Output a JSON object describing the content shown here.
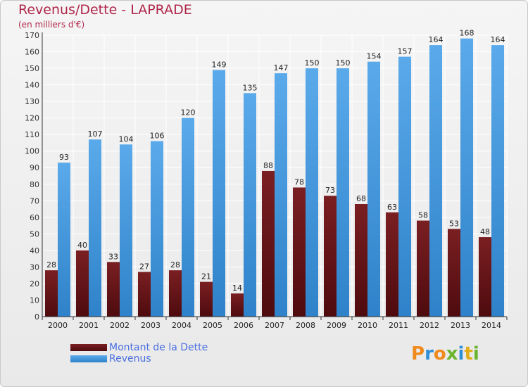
{
  "title": "Revenus/Dette - LAPRADE",
  "subtitle": "(en milliers d'€)",
  "logo": {
    "text": "Proxiti",
    "letters": [
      "P",
      "r",
      "o",
      "x",
      "i",
      "t",
      "i"
    ],
    "colors": [
      "#f08a1c",
      "#2f8fd6",
      "#f08a1c",
      "#6ab42d",
      "#2f8fd6",
      "#e2ad15",
      "#6ab42d"
    ]
  },
  "colors": {
    "title": "#b0264b",
    "debt": "#7a1f22",
    "debt_dark": "#4e0b0e",
    "revenue": "#5aaaeb",
    "revenue_dark": "#2f82c9",
    "legend_text": "#4a6fe0",
    "grid": "#ffffff"
  },
  "chart_data": {
    "type": "bar",
    "categories": [
      "2000",
      "2001",
      "2002",
      "2003",
      "2004",
      "2005",
      "2006",
      "2007",
      "2008",
      "2009",
      "2010",
      "2011",
      "2012",
      "2013",
      "2014"
    ],
    "series": [
      {
        "name": "Montant de la Dette",
        "values": [
          28,
          40,
          33,
          27,
          28,
          21,
          14,
          88,
          78,
          73,
          68,
          63,
          58,
          53,
          48
        ]
      },
      {
        "name": "Revenus",
        "values": [
          93,
          107,
          104,
          106,
          120,
          149,
          135,
          147,
          150,
          150,
          154,
          157,
          164,
          168,
          164
        ]
      }
    ],
    "ylim": [
      0,
      170
    ],
    "yticks": [
      0,
      10,
      20,
      30,
      40,
      50,
      60,
      70,
      80,
      90,
      100,
      110,
      120,
      130,
      140,
      150,
      160,
      170
    ],
    "grid": true,
    "legend": "bottom-left"
  }
}
